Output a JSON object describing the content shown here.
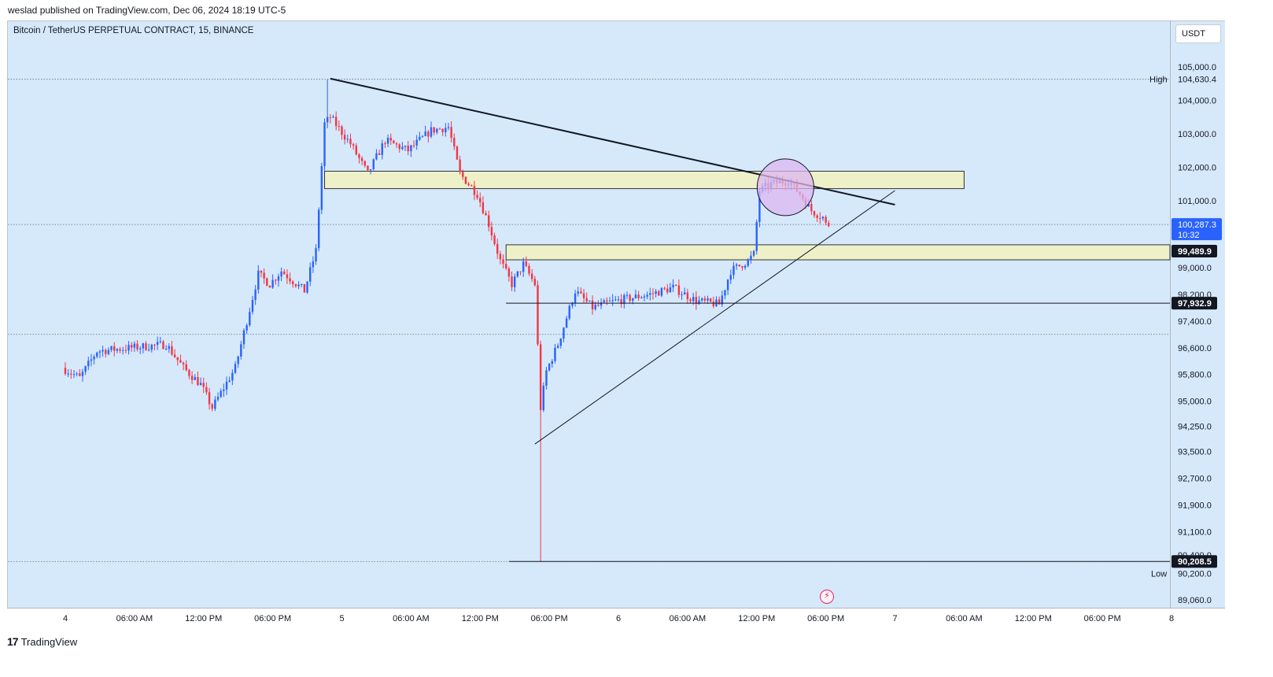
{
  "header": {
    "published": "weslad published on TradingView.com, Dec 06, 2024 18:19 UTC-5"
  },
  "chart_title": "Bitcoin / TetherUS PERPETUAL CONTRACT, 15, BINANCE",
  "currency": "USDT",
  "brand": {
    "logo": "17",
    "name": "TradingView"
  },
  "colors": {
    "up": "#2962ff",
    "down": "#f23645",
    "background": "#d6e9fb",
    "zone_fill": "#eef0c8",
    "circle_fill": "#dcb6f0"
  },
  "chart_data": {
    "type": "candlestick",
    "y_ticks": [
      "105,000.0",
      "104,000.0",
      "103,000.0",
      "102,000.0",
      "101,000.0",
      "99,000.0",
      "98,200.0",
      "97,400.0",
      "96,600.0",
      "95,800.0",
      "95,000.0",
      "94,250.0",
      "93,500.0",
      "92,700.0",
      "91,900.0",
      "91,100.0",
      "90,400.0",
      "89,060.0"
    ],
    "x_ticks": [
      "4",
      "06:00 AM",
      "12:00 PM",
      "06:00 PM",
      "5",
      "06:00 AM",
      "12:00 PM",
      "06:00 PM",
      "6",
      "06:00 AM",
      "12:00 PM",
      "06:00 PM",
      "7",
      "06:00 AM",
      "12:00 PM",
      "06:00 PM",
      "8"
    ],
    "high": {
      "label": "High",
      "value": "104,630.4"
    },
    "low": {
      "label": "Low",
      "value": "90,200.0"
    },
    "current_price": {
      "value": "100,287.3",
      "countdown": "10:32"
    },
    "levels": [
      {
        "value": "99,489.9"
      },
      {
        "value": "97,932.9"
      },
      {
        "value": "90,208.5"
      }
    ],
    "anchor_points": [
      [
        "Dec 4 00:00",
        96000
      ],
      [
        "Dec 4 01:30",
        95700
      ],
      [
        "Dec 4 03:00",
        96500
      ],
      [
        "Dec 4 06:00",
        96600
      ],
      [
        "Dec 4 09:00",
        96700
      ],
      [
        "Dec 4 10:30",
        96000
      ],
      [
        "Dec 4 12:00",
        95500
      ],
      [
        "Dec 4 13:00",
        94800
      ],
      [
        "Dec 4 15:00",
        96000
      ],
      [
        "Dec 4 17:00",
        98800
      ],
      [
        "Dec 4 18:00",
        98500
      ],
      [
        "Dec 4 19:00",
        98900
      ],
      [
        "Dec 4 21:00",
        98300
      ],
      [
        "Dec 4 22:00",
        99500
      ],
      [
        "Dec 4 22:45",
        103300
      ],
      [
        "Dec 4 23:15",
        103500
      ],
      [
        "Dec 5 01:00",
        102700
      ],
      [
        "Dec 5 02:30",
        101800
      ],
      [
        "Dec 5 04:00",
        102800
      ],
      [
        "Dec 5 06:00",
        102500
      ],
      [
        "Dec 5 08:00",
        103100
      ],
      [
        "Dec 5 09:30",
        103200
      ],
      [
        "Dec 5 10:30",
        101800
      ],
      [
        "Dec 5 12:00",
        101200
      ],
      [
        "Dec 5 13:00",
        100300
      ],
      [
        "Dec 5 14:00",
        99200
      ],
      [
        "Dec 5 15:00",
        98500
      ],
      [
        "Dec 5 16:00",
        99100
      ],
      [
        "Dec 5 17:00",
        98500
      ],
      [
        "Dec 5 17:30",
        94800
      ],
      [
        "Dec 5 18:00",
        95900
      ],
      [
        "Dec 5 19:00",
        96700
      ],
      [
        "Dec 5 20:30",
        98300
      ],
      [
        "Dec 5 22:00",
        97800
      ],
      [
        "Dec 6 00:00",
        98000
      ],
      [
        "Dec 6 03:00",
        98200
      ],
      [
        "Dec 6 05:00",
        98400
      ],
      [
        "Dec 6 07:00",
        98000
      ],
      [
        "Dec 6 09:00",
        97900
      ],
      [
        "Dec 6 10:00",
        98900
      ],
      [
        "Dec 6 11:30",
        99200
      ],
      [
        "Dec 6 12:00",
        99400
      ],
      [
        "Dec 6 12:30",
        101300
      ],
      [
        "Dec 6 13:30",
        101500
      ],
      [
        "Dec 6 15:00",
        101600
      ],
      [
        "Dec 6 16:00",
        101200
      ],
      [
        "Dec 6 17:00",
        100700
      ],
      [
        "Dec 6 18:00",
        100500
      ],
      [
        "Dec 6 18:15",
        100287.3
      ]
    ],
    "spike_low": {
      "time": "Dec 5 17:15",
      "value": 90200
    },
    "spike_high": {
      "time": "Dec 4 22:45",
      "value": 104630.4
    },
    "zones": [
      {
        "from": "Dec 4 22:30",
        "to": "Dec 7 06:00",
        "top": 101880,
        "bottom": 101360
      },
      {
        "from": "Dec 5 14:15",
        "to": "Dec 8 00:00",
        "top": 99680,
        "bottom": 99230
      }
    ],
    "trendlines": [
      {
        "from": [
          "Dec 4 23:00",
          104650
        ],
        "to": [
          "Dec 7 00:00",
          100880
        ],
        "style": "thick"
      },
      {
        "from": [
          "Dec 5 16:45",
          93720
        ],
        "to": [
          "Dec 7 00:00",
          101300
        ],
        "style": "thin"
      }
    ],
    "highlight_circle": {
      "time": "Dec 6 14:30",
      "value": 101400
    }
  }
}
